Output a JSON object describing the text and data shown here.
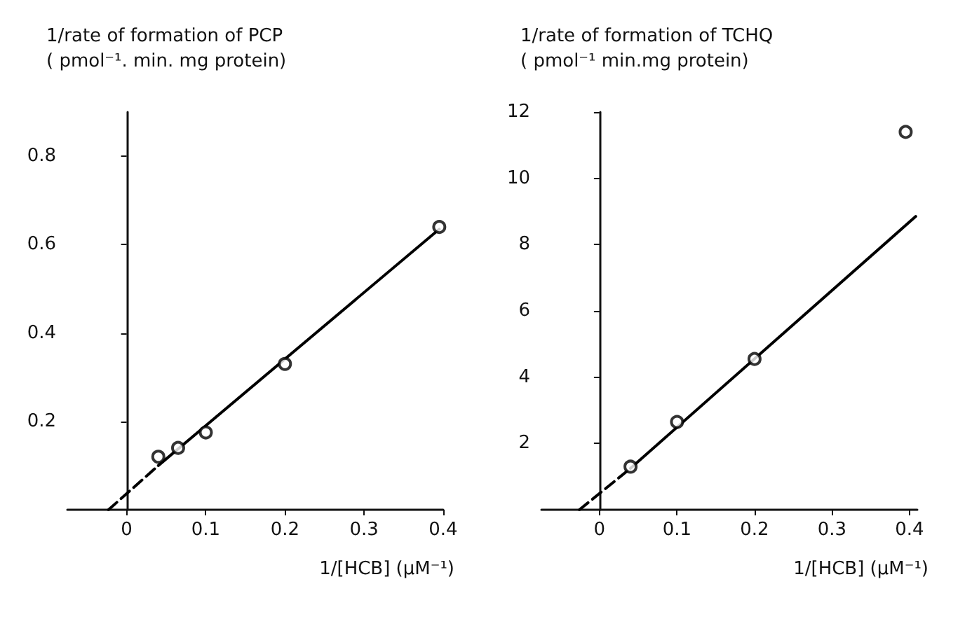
{
  "chart_data": [
    {
      "type": "scatter",
      "ylabel": "1/rate of formation of PCP\n( pmol⁻¹. min. mg protein)",
      "xlabel": "1/[HCB] (μM⁻¹)",
      "xlim": [
        -0.075,
        0.4
      ],
      "xticks": [
        0,
        0.1,
        0.2,
        0.3,
        0.4
      ],
      "ylim": [
        0,
        0.9
      ],
      "yticks": [
        0.2,
        0.4,
        0.6,
        0.8
      ],
      "series": [
        {
          "type": "scatter",
          "color": "#000000",
          "marker": "circle",
          "x": [
            0.04,
            0.065,
            0.1,
            0.2,
            0.395
          ],
          "values": [
            0.12,
            0.14,
            0.175,
            0.33,
            0.64
          ]
        },
        {
          "type": "line",
          "color": "#000000",
          "marker": "none",
          "line_style": "dashed",
          "x": [
            -0.023,
            0.04
          ],
          "values": [
            0,
            0.1
          ]
        },
        {
          "type": "line",
          "color": "#000000",
          "marker": "none",
          "line_style": "solid",
          "x": [
            0.04,
            0.395
          ],
          "values": [
            0.1,
            0.635
          ]
        }
      ]
    },
    {
      "type": "scatter",
      "ylabel": "1/rate of formation of TCHQ\n( pmol⁻¹ min.mg protein)",
      "xlabel": "1/[HCB] (μM⁻¹)",
      "xlim": [
        -0.075,
        0.41
      ],
      "xticks": [
        0,
        0.1,
        0.2,
        0.3,
        0.4
      ],
      "ylim": [
        0,
        12
      ],
      "yticks": [
        2,
        4,
        6,
        8,
        10,
        12
      ],
      "series": [
        {
          "type": "scatter",
          "color": "#000000",
          "marker": "circle",
          "x": [
            0.04,
            0.1,
            0.2,
            0.395
          ],
          "values": [
            1.3,
            2.65,
            4.55,
            11.4
          ]
        },
        {
          "type": "line",
          "color": "#000000",
          "marker": "none",
          "line_style": "dashed",
          "x": [
            -0.026,
            0.04
          ],
          "values": [
            0,
            1.25
          ]
        },
        {
          "type": "line",
          "color": "#000000",
          "marker": "none",
          "line_style": "solid",
          "x": [
            0.04,
            0.408
          ],
          "values": [
            1.25,
            8.85
          ]
        }
      ]
    }
  ]
}
